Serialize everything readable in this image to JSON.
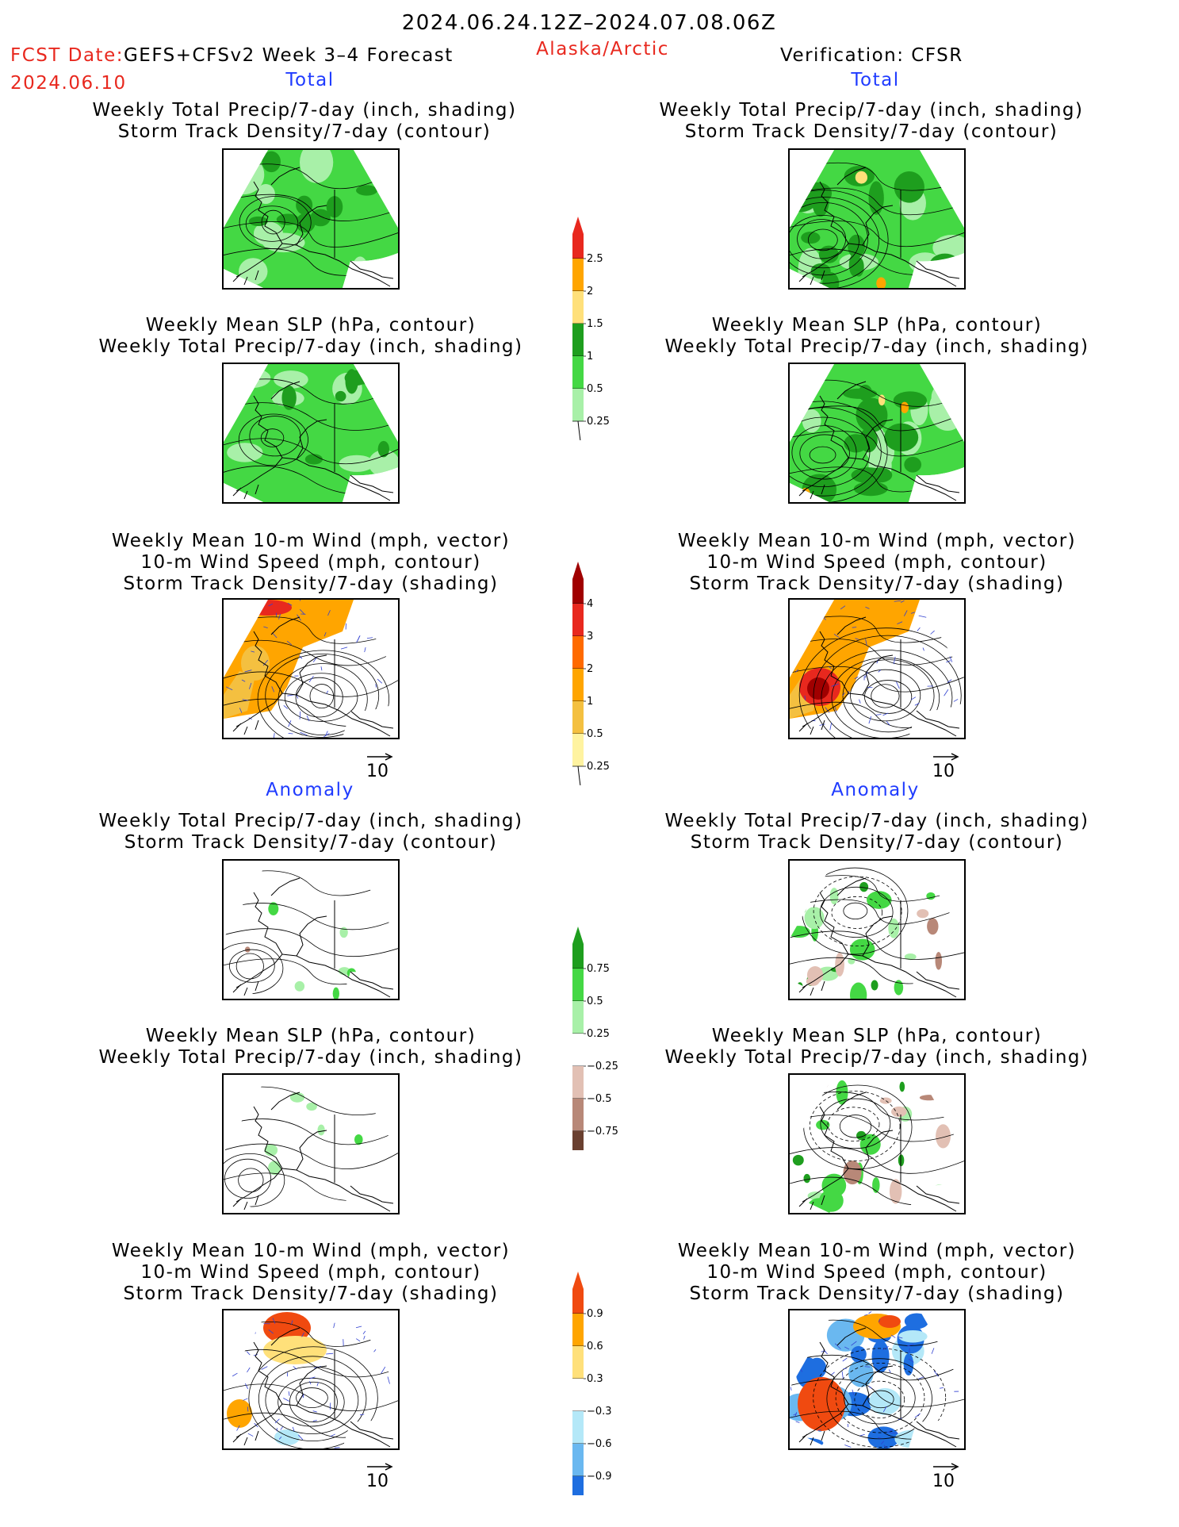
{
  "header": {
    "date_range": "2024.06.24.12Z–2024.07.08.06Z",
    "fcst_label": "FCST Date:",
    "fcst_model": "GEFS+CFSv2 Week 3–4 Forecast",
    "fcst_date": "2024.06.10",
    "region": "Alaska/Arctic",
    "verification": "Verification: CFSR"
  },
  "sections": {
    "total": "Total",
    "anomaly": "Anomaly"
  },
  "panel_titles": {
    "precip_storm": "Weekly Total Precip/7-day (inch, shading)\nStorm Track Density/7-day (contour)",
    "slp_precip": "Weekly Mean SLP (hPa, contour)\nWeekly Total Precip/7-day (inch, shading)",
    "wind_storm": "Weekly Mean 10-m Wind (mph, vector)\n10-m Wind Speed (mph, contour)\nStorm Track Density/7-day (shading)"
  },
  "vector_key": "10",
  "colorbars": {
    "precip_total": {
      "levels": [
        "2.5",
        "2",
        "1.5",
        "1",
        "0.5",
        "0.25"
      ],
      "colors": [
        "#e8281e",
        "#ffa500",
        "#ffe07a",
        "#1e9e1e",
        "#44d844",
        "#a8f0a8"
      ]
    },
    "storm_total": {
      "levels": [
        "4",
        "3",
        "2",
        "1",
        "0.5",
        "0.25"
      ],
      "colors": [
        "#a00000",
        "#e8281e",
        "#ff6a00",
        "#ffa500",
        "#f4c040",
        "#fff3a0"
      ]
    },
    "precip_anom": {
      "levels": [
        "0.75",
        "0.5",
        "0.25",
        "−0.25",
        "−0.5",
        "−0.75"
      ],
      "colors": [
        "#1e9e1e",
        "#44d844",
        "#a8f0a8",
        "#ffffff",
        "#e2c0b4",
        "#b88878",
        "#6a4030"
      ]
    },
    "storm_anom": {
      "levels": [
        "0.9",
        "0.6",
        "0.3",
        "−0.3",
        "−0.6",
        "−0.9"
      ],
      "colors": [
        "#f04a10",
        "#ffa500",
        "#ffe07a",
        "#ffffff",
        "#b4e8f8",
        "#6ab8f0",
        "#1e6ee0"
      ]
    }
  },
  "chart_data": {
    "type": "map-panels",
    "columns": [
      "GEFS+CFSv2 Week 3–4 Forecast",
      "Verification: CFSR"
    ],
    "rows": [
      "Total: precip + storm track",
      "Total: SLP + precip",
      "Total: wind + storm track",
      "Anomaly: precip + storm track",
      "Anomaly: SLP + precip",
      "Anomaly: wind + storm track"
    ],
    "colors": {
      "precip_green": "#44d844",
      "precip_dark": "#1e9e1e",
      "storm_orange": "#ffa500",
      "storm_red": "#e8281e",
      "anom_brown": "#b88878",
      "anom_blue": "#6ab8f0"
    }
  }
}
